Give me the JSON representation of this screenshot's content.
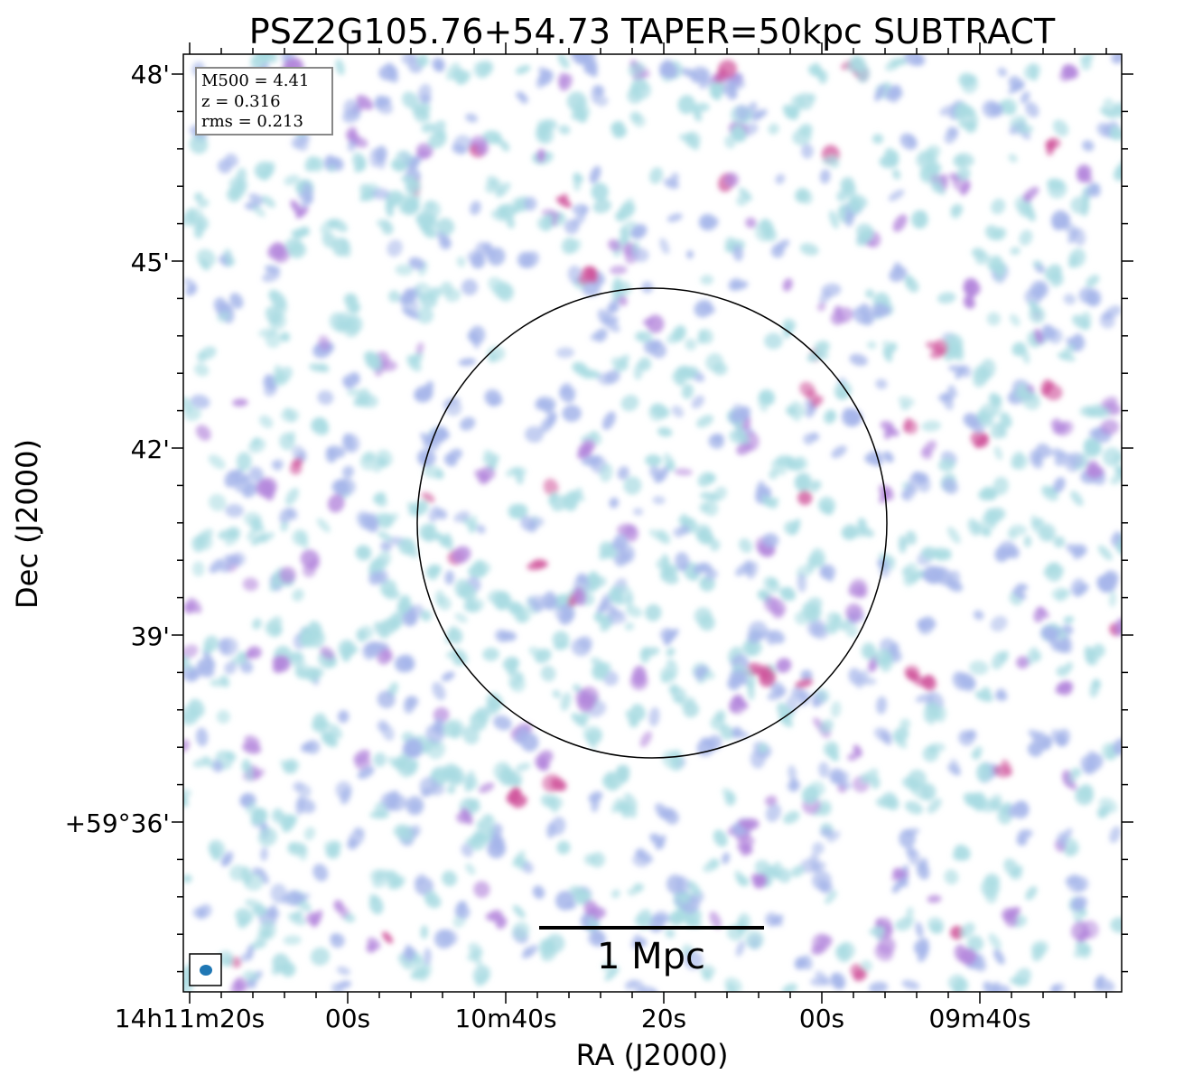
{
  "chart_data": {
    "type": "image",
    "title": "PSZ2G105.76+54.73 TAPER=50kpc SUBTRACT",
    "xlabel": "RA (J2000)",
    "ylabel": "Dec (J2000)",
    "x_ticks": [
      "14h11m20s",
      "00s",
      "10m40s",
      "20s",
      "00s",
      "09m40s"
    ],
    "y_ticks": [
      "48'",
      "45'",
      "42'",
      "39'",
      "+59°36'"
    ],
    "info": {
      "m500": "M500 = 4.41",
      "z": "z = 0.316",
      "rms": "rms = 0.213"
    },
    "scale_bar": {
      "label": "1 Mpc",
      "length_mpc": 1
    },
    "colormap": [
      "#a9dbe2",
      "#a6b6ea",
      "#b487dc",
      "#d0569c"
    ],
    "circle_color": "#000000",
    "beam_color": "#1f77b4"
  }
}
